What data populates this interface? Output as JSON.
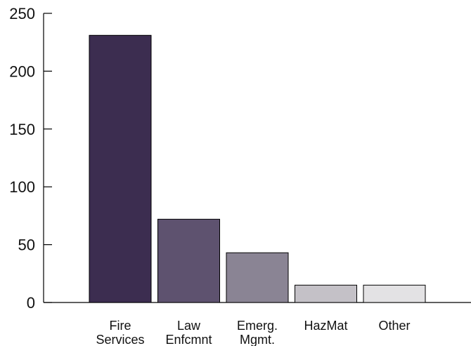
{
  "chart_data": {
    "type": "bar",
    "categories": [
      [
        "Fire",
        "Services"
      ],
      [
        "Law",
        "Enfcmnt"
      ],
      [
        "Emerg.",
        "Mgmt."
      ],
      [
        "HazMat"
      ],
      [
        "Other"
      ]
    ],
    "values": [
      231,
      72,
      43,
      15,
      15
    ],
    "bar_colors": [
      "#3c2d50",
      "#5e526f",
      "#8a8494",
      "#c4c1c7",
      "#e3e2e4"
    ],
    "title": "",
    "xlabel": "",
    "ylabel": "",
    "ylim": [
      0,
      250
    ],
    "yticks": [
      0,
      50,
      100,
      150,
      200,
      250
    ],
    "grid": false,
    "legend": "none"
  }
}
